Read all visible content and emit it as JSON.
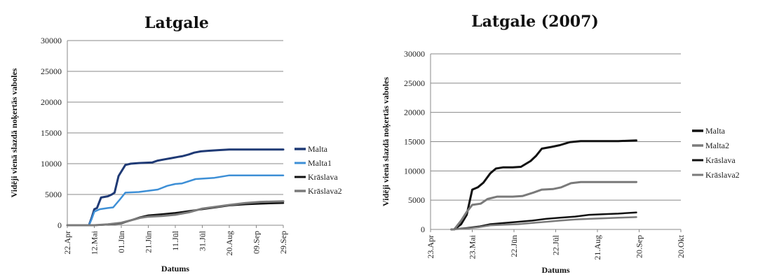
{
  "chart_data": [
    {
      "type": "line",
      "title": "Latgale",
      "xlabel": "Datums",
      "ylabel": "Vidēji vienā slazdā noķertās vaboles",
      "ylim": [
        0,
        30000
      ],
      "yticks": [
        "0",
        "5000",
        "10000",
        "15000",
        "20000",
        "25000",
        "30000"
      ],
      "xlim": [
        "2007-04-22",
        "2007-09-29"
      ],
      "xticks": [
        {
          "label": "22.Apr",
          "date": "2007-04-22"
        },
        {
          "label": "12.Mai",
          "date": "2007-05-12"
        },
        {
          "label": "01.Jūn",
          "date": "2007-06-01"
        },
        {
          "label": "21.Jūn",
          "date": "2007-06-21"
        },
        {
          "label": "11.Jūl",
          "date": "2007-07-11"
        },
        {
          "label": "31.Jūl",
          "date": "2007-07-31"
        },
        {
          "label": "20.Aug",
          "date": "2007-08-20"
        },
        {
          "label": "09.Sep",
          "date": "2007-09-09"
        },
        {
          "label": "29.Sep",
          "date": "2007-09-29"
        }
      ],
      "grid": true,
      "legend": "right",
      "series": [
        {
          "name": "Malta",
          "color": "#1f3a75",
          "width": 3,
          "x": [
            "2007-05-01",
            "2007-05-08",
            "2007-05-10",
            "2007-05-12",
            "2007-05-14",
            "2007-05-17",
            "2007-05-22",
            "2007-05-25",
            "2007-05-27",
            "2007-05-30",
            "2007-06-04",
            "2007-06-08",
            "2007-06-14",
            "2007-06-24",
            "2007-06-28",
            "2007-07-03",
            "2007-07-08",
            "2007-07-13",
            "2007-07-16",
            "2007-07-21",
            "2007-07-25",
            "2007-07-30",
            "2007-08-05",
            "2007-08-12",
            "2007-08-20",
            "2007-08-30",
            "2007-09-12",
            "2007-09-29"
          ],
          "y": [
            0,
            0,
            1200,
            2600,
            2800,
            4500,
            4700,
            5000,
            5300,
            8000,
            9800,
            10000,
            10100,
            10200,
            10500,
            10700,
            10900,
            11100,
            11200,
            11500,
            11800,
            12000,
            12100,
            12200,
            12300,
            12300,
            12300,
            12300
          ]
        },
        {
          "name": "Malta1",
          "color": "#3d8fd6",
          "width": 2.5,
          "x": [
            "2007-05-01",
            "2007-05-08",
            "2007-05-10",
            "2007-05-12",
            "2007-05-16",
            "2007-05-22",
            "2007-05-26",
            "2007-05-31",
            "2007-06-04",
            "2007-06-14",
            "2007-06-21",
            "2007-06-28",
            "2007-07-05",
            "2007-07-11",
            "2007-07-16",
            "2007-07-26",
            "2007-08-02",
            "2007-08-09",
            "2007-08-20",
            "2007-08-30",
            "2007-09-29"
          ],
          "y": [
            0,
            0,
            1000,
            2200,
            2600,
            2800,
            2900,
            4200,
            5300,
            5400,
            5600,
            5800,
            6400,
            6700,
            6800,
            7500,
            7600,
            7700,
            8100,
            8100,
            8100
          ]
        },
        {
          "name": "Krāslava",
          "color": "#111111",
          "width": 2.5,
          "x": [
            "2007-04-22",
            "2007-05-12",
            "2007-05-22",
            "2007-06-01",
            "2007-06-08",
            "2007-06-15",
            "2007-06-21",
            "2007-07-01",
            "2007-07-11",
            "2007-07-21",
            "2007-07-31",
            "2007-08-10",
            "2007-08-20",
            "2007-09-01",
            "2007-09-12",
            "2007-09-29"
          ],
          "y": [
            0,
            0,
            100,
            300,
            800,
            1300,
            1600,
            1800,
            2000,
            2300,
            2600,
            2900,
            3200,
            3400,
            3500,
            3600
          ]
        },
        {
          "name": "Krāslava2",
          "color": "#7a7a7a",
          "width": 3,
          "x": [
            "2007-04-22",
            "2007-05-12",
            "2007-05-22",
            "2007-06-01",
            "2007-06-08",
            "2007-06-15",
            "2007-06-21",
            "2007-07-01",
            "2007-07-11",
            "2007-07-21",
            "2007-07-31",
            "2007-08-10",
            "2007-08-20",
            "2007-09-01",
            "2007-09-12",
            "2007-09-29"
          ],
          "y": [
            0,
            0,
            150,
            400,
            800,
            1200,
            1400,
            1500,
            1700,
            2100,
            2700,
            3000,
            3300,
            3600,
            3800,
            3900
          ]
        }
      ]
    },
    {
      "type": "line",
      "title": "Latgale (2007)",
      "xlabel": "Datums",
      "ylabel": "Vidēji vienā slazdā noķertās vaboles",
      "ylim": [
        0,
        30000
      ],
      "yticks": [
        "0",
        "5000",
        "10000",
        "15000",
        "20000",
        "25000",
        "30000"
      ],
      "xlim": [
        "2007-04-23",
        "2007-10-20"
      ],
      "xticks": [
        {
          "label": "23.Apr",
          "date": "2007-04-23"
        },
        {
          "label": "23.Mai",
          "date": "2007-05-23"
        },
        {
          "label": "22.Jūn",
          "date": "2007-06-22"
        },
        {
          "label": "22.Jūl",
          "date": "2007-07-22"
        },
        {
          "label": "21.Aug",
          "date": "2007-08-21"
        },
        {
          "label": "20.Sep",
          "date": "2007-09-20"
        },
        {
          "label": "20.Okt",
          "date": "2007-10-20"
        }
      ],
      "grid": true,
      "legend": "right",
      "series": [
        {
          "name": "Malta",
          "color": "#111111",
          "width": 3,
          "x": [
            "2007-05-08",
            "2007-05-10",
            "2007-05-15",
            "2007-05-19",
            "2007-05-23",
            "2007-05-27",
            "2007-05-31",
            "2007-06-05",
            "2007-06-09",
            "2007-06-14",
            "2007-06-21",
            "2007-06-27",
            "2007-07-04",
            "2007-07-08",
            "2007-07-12",
            "2007-07-19",
            "2007-07-25",
            "2007-08-01",
            "2007-08-09",
            "2007-08-21",
            "2007-09-05",
            "2007-09-18"
          ],
          "y": [
            0,
            0,
            900,
            2500,
            6800,
            7200,
            8000,
            9600,
            10400,
            10600,
            10600,
            10700,
            11700,
            12600,
            13800,
            14100,
            14400,
            14900,
            15100,
            15100,
            15100,
            15200
          ]
        },
        {
          "name": "Malta2",
          "color": "#7a7a7a",
          "width": 3,
          "x": [
            "2007-05-08",
            "2007-05-10",
            "2007-05-15",
            "2007-05-19",
            "2007-05-23",
            "2007-05-29",
            "2007-06-03",
            "2007-06-10",
            "2007-06-21",
            "2007-06-28",
            "2007-07-06",
            "2007-07-12",
            "2007-07-20",
            "2007-07-26",
            "2007-08-02",
            "2007-08-09",
            "2007-08-21",
            "2007-09-05",
            "2007-09-18"
          ],
          "y": [
            0,
            0,
            1500,
            3000,
            4200,
            4400,
            5200,
            5600,
            5600,
            5700,
            6300,
            6800,
            6900,
            7200,
            7900,
            8100,
            8100,
            8100,
            8100
          ]
        },
        {
          "name": "Krāslava",
          "color": "#111111",
          "width": 2.5,
          "x": [
            "2007-05-08",
            "2007-05-18",
            "2007-05-28",
            "2007-06-05",
            "2007-06-15",
            "2007-06-25",
            "2007-07-05",
            "2007-07-15",
            "2007-07-25",
            "2007-08-05",
            "2007-08-15",
            "2007-08-25",
            "2007-09-05",
            "2007-09-18"
          ],
          "y": [
            0,
            200,
            500,
            900,
            1100,
            1300,
            1500,
            1800,
            2000,
            2200,
            2500,
            2600,
            2700,
            2900
          ]
        },
        {
          "name": "Krāslava2",
          "color": "#7a7a7a",
          "width": 2.5,
          "x": [
            "2007-05-08",
            "2007-05-18",
            "2007-05-28",
            "2007-06-05",
            "2007-06-15",
            "2007-06-25",
            "2007-07-05",
            "2007-07-15",
            "2007-07-25",
            "2007-08-05",
            "2007-08-15",
            "2007-08-25",
            "2007-09-05",
            "2007-09-18"
          ],
          "y": [
            0,
            150,
            400,
            700,
            800,
            900,
            1100,
            1300,
            1500,
            1700,
            1800,
            1900,
            2000,
            2100
          ]
        }
      ]
    }
  ]
}
